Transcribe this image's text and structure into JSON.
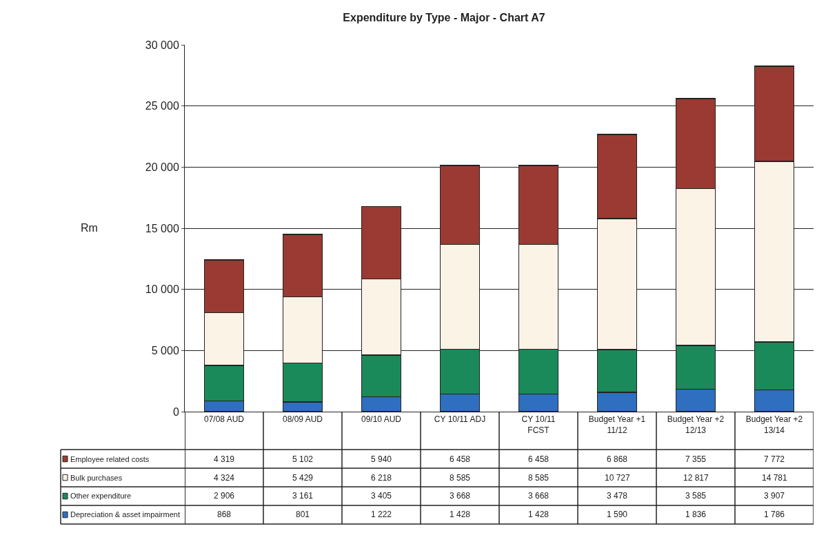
{
  "chart_data": {
    "type": "bar",
    "title": "Expenditure by Type - Major - Chart A7",
    "ylabel": "Rm",
    "stacked": true,
    "data_labels": true,
    "grid": "y",
    "legend": "bottom left",
    "categories": [
      "07/08 AUD",
      "08/09 AUD",
      "09/10 AUD",
      "CY 10/11 ADJ",
      "CY 10/11\nFCST",
      "Budget Year +1\n11/12",
      "Budget Year +2\n12/13",
      "Budget Year +2\n13/14"
    ],
    "ylim": [
      0,
      30000
    ],
    "yticks": [
      {
        "value": 0,
        "label": "0"
      },
      {
        "value": 5000,
        "label": "5 000"
      },
      {
        "value": 10000,
        "label": "10 000"
      },
      {
        "value": 15000,
        "label": "15 000"
      },
      {
        "value": 20000,
        "label": "20 000"
      },
      {
        "value": 25000,
        "label": "25 000"
      },
      {
        "value": 30000,
        "label": "30 000"
      }
    ],
    "series": [
      {
        "name": "Depreciation & asset impairment",
        "color": "#2e6fc0",
        "values": [
          868,
          801,
          1222,
          1428,
          1428,
          1590,
          1836,
          1786
        ]
      },
      {
        "name": "Other expenditure",
        "color": "#1a8a5a",
        "values": [
          2906,
          3161,
          3405,
          3668,
          3668,
          3478,
          3585,
          3907
        ]
      },
      {
        "name": "Bulk purchases",
        "color": "#fbf3e6",
        "values": [
          4324,
          5429,
          6218,
          8585,
          8585,
          10727,
          12817,
          14781
        ]
      },
      {
        "name": "Employee related costs",
        "color": "#9b3a32",
        "values": [
          4319,
          5102,
          5940,
          6458,
          6458,
          6868,
          7355,
          7772
        ]
      }
    ]
  }
}
